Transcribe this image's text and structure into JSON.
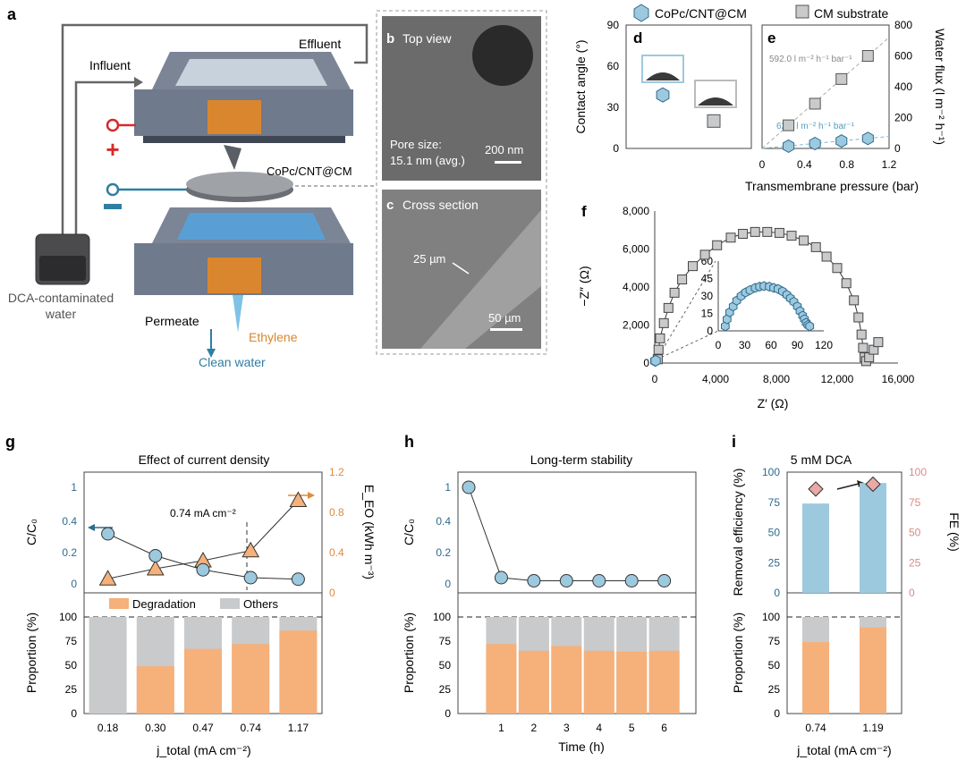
{
  "colors": {
    "blue": "#9dc9df",
    "blue_dark": "#2e6a8c",
    "orange": "#f6b07a",
    "orange_dark": "#e08a3c",
    "gray": "#c9cacb",
    "pink": "#e9a9a4",
    "red": "#d62a2a",
    "teal": "#2f7ea3"
  },
  "panels": {
    "a": {
      "letter": "a",
      "influent": "Influent",
      "effluent": "Effluent",
      "membrane_label": "CoPc/CNT@CM",
      "reservoir_label_line1": "DCA-contaminated",
      "reservoir_label_line2": "water",
      "permeate": "Permeate",
      "ethylene": "Ethylene",
      "clean_water": "Clean water"
    },
    "b": {
      "letter": "b",
      "title": "Top view",
      "pore_line1": "Pore size:",
      "pore_line2": "15.1 nm (avg.)",
      "scale": "200 nm"
    },
    "c": {
      "letter": "c",
      "title": "Cross section",
      "thickness": "25 µm",
      "scale": "50 µm"
    }
  },
  "legend_de": {
    "item1": "CoPc/CNT@CM",
    "item2": "CM substrate"
  },
  "chart_data": [
    {
      "panel": "d",
      "type": "scatter",
      "ylabel": "Contact angle (°)",
      "ylim": [
        0,
        90
      ],
      "yticks": [
        "0",
        "30",
        "60",
        "90"
      ],
      "series": [
        {
          "name": "CoPc/CNT@CM",
          "values": [
            39
          ]
        },
        {
          "name": "CM substrate",
          "values": [
            20
          ]
        }
      ]
    },
    {
      "panel": "e",
      "type": "scatter",
      "xlabel": "Transmembrane pressure (bar)",
      "ylabel": "Water flux (l m⁻² h⁻¹)",
      "xlim": [
        0,
        1.2
      ],
      "ylim": [
        0,
        800
      ],
      "xticks": [
        "0",
        "0.4",
        "0.8",
        "1.2"
      ],
      "yticks": [
        "0",
        "200",
        "400",
        "600",
        "800"
      ],
      "series": [
        {
          "name": "CM substrate",
          "x": [
            0.25,
            0.5,
            0.75,
            1.0
          ],
          "y": [
            150,
            290,
            450,
            600
          ],
          "annotation": "592.0 l m⁻² h⁻¹ bar⁻¹"
        },
        {
          "name": "CoPc/CNT@CM",
          "x": [
            0.25,
            0.5,
            0.75,
            1.0
          ],
          "y": [
            15,
            32,
            48,
            65
          ],
          "annotation": "62.6 l m⁻² h⁻¹ bar⁻¹"
        }
      ]
    },
    {
      "panel": "f",
      "type": "scatter",
      "xlabel": "Z′ (Ω)",
      "ylabel": "−Z″ (Ω)",
      "xlim": [
        0,
        16000
      ],
      "ylim": [
        0,
        8000
      ],
      "xticks": [
        "0",
        "4,000",
        "8,000",
        "12,000",
        "16,000"
      ],
      "yticks": [
        "0",
        "2,000",
        "4,000",
        "6,000",
        "8,000"
      ],
      "series": [
        {
          "name": "CM substrate",
          "x": [
            200,
            250,
            350,
            600,
            900,
            1300,
            1800,
            2500,
            3300,
            4100,
            5000,
            5800,
            6600,
            7400,
            8200,
            9000,
            9800,
            10600,
            11300,
            12000,
            12600,
            13100,
            13400,
            13600,
            13700,
            13800,
            13900,
            14100,
            14400,
            14700
          ],
          "y": [
            200,
            700,
            1300,
            2100,
            2900,
            3700,
            4400,
            5100,
            5700,
            6200,
            6600,
            6800,
            6900,
            6900,
            6850,
            6700,
            6450,
            6100,
            5600,
            5000,
            4200,
            3300,
            2400,
            1500,
            800,
            300,
            100,
            300,
            700,
            1100
          ]
        },
        {
          "name": "CoPc/CNT@CM",
          "x": [
            40,
            60
          ],
          "y": [
            15,
            30
          ]
        }
      ],
      "inset": {
        "xlim": [
          0,
          120
        ],
        "ylim": [
          0,
          60
        ],
        "xticks": [
          "0",
          "30",
          "60",
          "90",
          "120"
        ],
        "yticks": [
          "0",
          "15",
          "30",
          "45",
          "60"
        ],
        "series": [
          {
            "name": "CoPc/CNT@CM",
            "x": [
              8,
              10,
              13,
              17,
              21,
              26,
              31,
              36,
              42,
              47,
              52,
              58,
              63,
              68,
              73,
              78,
              82,
              86,
              90,
              93,
              96,
              98,
              100,
              102,
              104
            ],
            "y": [
              4,
              10,
              16,
              21,
              26,
              30,
              33,
              35,
              37,
              38,
              38.5,
              38,
              37,
              36,
              34,
              31,
              28,
              25,
              21,
              17,
              13,
              10,
              7,
              5,
              4
            ]
          }
        ]
      }
    },
    {
      "panel": "g",
      "title": "Effect of current density",
      "type": "line",
      "xlabel": "j_total (mA cm⁻²)",
      "categories": [
        "0.18",
        "0.30",
        "0.47",
        "0.74",
        "1.17"
      ],
      "top": {
        "ylabel_left": "C/C₀",
        "ylabel_right": "E_EO (kWh m⁻³)",
        "yticks_left": [
          "0",
          "0.2",
          "0.4",
          "1"
        ],
        "yticks_right": [
          "0",
          "0.4",
          "0.8",
          "1.2"
        ],
        "annotation": "0.74 mA cm⁻²",
        "series": [
          {
            "name": "C/C₀",
            "axis": "left",
            "values": [
              0.32,
              0.18,
              0.09,
              0.04,
              0.03
            ]
          },
          {
            "name": "E_EO",
            "axis": "right",
            "values": [
              0.14,
              0.24,
              0.32,
              0.42,
              0.92
            ]
          }
        ]
      },
      "bottom": {
        "type": "bar",
        "ylabel": "Proportion (%)",
        "ylim": [
          0,
          100
        ],
        "yticks": [
          "0",
          "25",
          "50",
          "75",
          "100"
        ],
        "series": [
          {
            "name": "Degradation",
            "values": [
              0,
              49,
              67,
              72,
              86
            ]
          },
          {
            "name": "Others",
            "values": [
              100,
              51,
              33,
              28,
              14
            ]
          }
        ]
      }
    },
    {
      "panel": "h",
      "title": "Long-term stability",
      "type": "line",
      "xlabel": "Time (h)",
      "categories": [
        "1",
        "2",
        "3",
        "4",
        "5",
        "6"
      ],
      "top": {
        "ylabel": "C/C₀",
        "yticks": [
          "0",
          "0.2",
          "0.4",
          "1"
        ],
        "initial": {
          "x": 0,
          "y": 1
        },
        "series": [
          {
            "name": "C/C₀",
            "values": [
              0.04,
              0.02,
              0.02,
              0.02,
              0.02,
              0.02
            ]
          }
        ]
      },
      "bottom": {
        "type": "bar",
        "ylabel": "Proportion (%)",
        "ylim": [
          0,
          100
        ],
        "yticks": [
          "0",
          "25",
          "50",
          "75",
          "100"
        ],
        "series": [
          {
            "name": "Degradation",
            "values": [
              72,
              65,
              70,
              65,
              64,
              65
            ]
          },
          {
            "name": "Others",
            "values": [
              28,
              35,
              30,
              35,
              36,
              35
            ]
          }
        ]
      }
    },
    {
      "panel": "i",
      "title": "5 mM DCA",
      "type": "bar",
      "xlabel": "j_total (mA cm⁻²)",
      "categories": [
        "0.74",
        "1.19"
      ],
      "top": {
        "ylabel_left": "Removal efficiency (%)",
        "ylabel_right": "FE (%)",
        "yticks": [
          "0",
          "25",
          "50",
          "75",
          "100"
        ],
        "series": [
          {
            "name": "Removal efficiency",
            "axis": "left",
            "values": [
              74,
              91
            ]
          },
          {
            "name": "FE",
            "axis": "right",
            "values": [
              86,
              90
            ]
          }
        ]
      },
      "bottom": {
        "ylabel": "Proportion (%)",
        "ylim": [
          0,
          100
        ],
        "yticks": [
          "0",
          "25",
          "50",
          "75",
          "100"
        ],
        "series": [
          {
            "name": "Degradation",
            "values": [
              74,
              89
            ]
          },
          {
            "name": "Others",
            "values": [
              26,
              11
            ]
          }
        ]
      }
    }
  ]
}
